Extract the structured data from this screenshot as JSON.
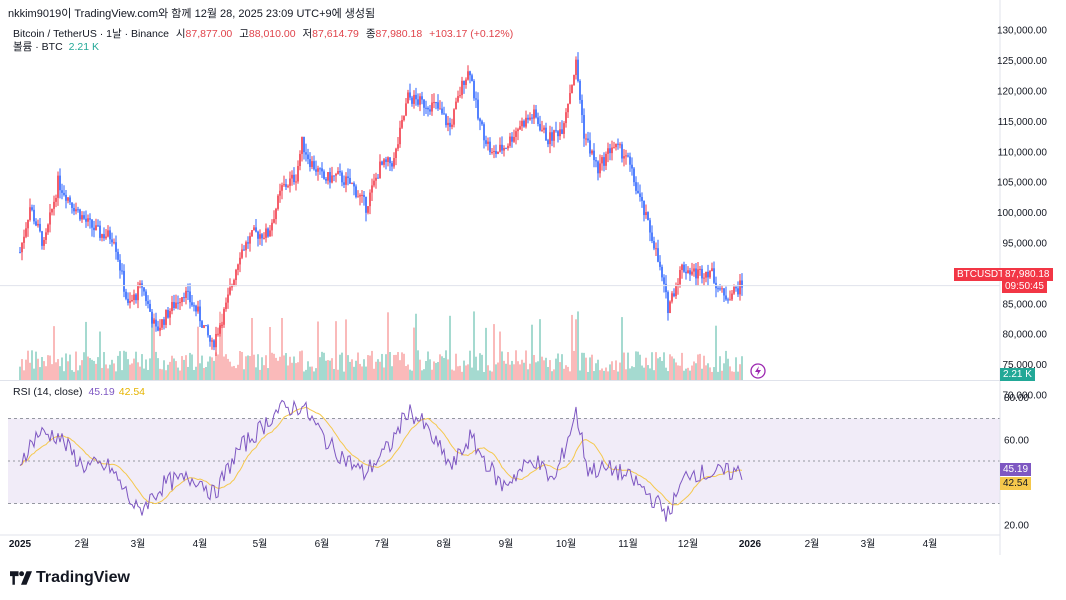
{
  "caption": "nkkim9019이 TradingView.com와 함께 12월 28, 2025 23:09 UTC+9에 생성됨",
  "header": {
    "symbol": "Bitcoin / TetherUS · 1날 · Binance",
    "open_label": "시",
    "open": "87,877.00",
    "high_label": "고",
    "high": "88,010.00",
    "low_label": "저",
    "low": "87,614.79",
    "close_label": "종",
    "close": "87,980.18",
    "change": "+103.17 (+0.12%)"
  },
  "volume": {
    "label": "볼륨 · BTC",
    "value": "2.21 K"
  },
  "rsi": {
    "label": "RSI (14, close)",
    "value": "45.19",
    "ma_value": "42.54"
  },
  "price_tag": {
    "symbol": "BTCUSDT",
    "price": "87,980.18",
    "countdown": "09:50:45"
  },
  "volume_tag": "2.21 K",
  "footer_logo": "TradingView",
  "colors": {
    "up": "#f23645",
    "down": "#2962ff",
    "vol_up": "#f8a9a9",
    "vol_down": "#8fd1c4",
    "rsi": "#7e57c2",
    "rsi_ma": "#f5c84c",
    "rsi_band": "#ede7f6"
  },
  "chart_data": {
    "type": "candlestick",
    "x_ticks": [
      "2025",
      "2월",
      "3월",
      "4월",
      "5월",
      "6월",
      "7월",
      "8월",
      "9월",
      "10월",
      "11월",
      "12월",
      "2026",
      "2월",
      "3월",
      "4월"
    ],
    "price_axis_ticks": [
      "130,000.00",
      "125,000.00",
      "120,000.00",
      "115,000.00",
      "110,000.00",
      "105,000.00",
      "100,000.00",
      "95,000.00",
      "90,000.00",
      "85,000.00",
      "80,000.00",
      "75,000.00",
      "70,000.00"
    ],
    "price_ylim": [
      70000,
      132000
    ],
    "rsi_axis_ticks": [
      "80.00",
      "60.00",
      "40.00",
      "20.00"
    ],
    "rsi_ylim": [
      18,
      82
    ],
    "rsi_bands": [
      70,
      50,
      30
    ],
    "price_path": [
      [
        "2025-01-01",
        93500
      ],
      [
        "2025-01-06",
        101000
      ],
      [
        "2025-01-13",
        94500
      ],
      [
        "2025-01-20",
        105000
      ],
      [
        "2025-01-27",
        101500
      ],
      [
        "2025-02-03",
        98500
      ],
      [
        "2025-02-10",
        96500
      ],
      [
        "2025-02-17",
        96000
      ],
      [
        "2025-02-24",
        84500
      ],
      [
        "2025-03-03",
        88000
      ],
      [
        "2025-03-10",
        80500
      ],
      [
        "2025-03-17",
        84000
      ],
      [
        "2025-03-24",
        87000
      ],
      [
        "2025-03-31",
        83500
      ],
      [
        "2025-04-07",
        78000
      ],
      [
        "2025-04-14",
        84500
      ],
      [
        "2025-04-21",
        93500
      ],
      [
        "2025-04-28",
        96500
      ],
      [
        "2025-05-05",
        96500
      ],
      [
        "2025-05-12",
        104000
      ],
      [
        "2025-05-19",
        106000
      ],
      [
        "2025-05-22",
        111500
      ],
      [
        "2025-05-26",
        108500
      ],
      [
        "2025-06-02",
        105500
      ],
      [
        "2025-06-09",
        106000
      ],
      [
        "2025-06-16",
        104500
      ],
      [
        "2025-06-23",
        101000
      ],
      [
        "2025-06-30",
        107500
      ],
      [
        "2025-07-07",
        108500
      ],
      [
        "2025-07-14",
        119000
      ],
      [
        "2025-07-21",
        118000
      ],
      [
        "2025-07-28",
        117500
      ],
      [
        "2025-08-04",
        114000
      ],
      [
        "2025-08-11",
        122000
      ],
      [
        "2025-08-14",
        123500
      ],
      [
        "2025-08-18",
        115500
      ],
      [
        "2025-08-25",
        109500
      ],
      [
        "2025-09-01",
        111000
      ],
      [
        "2025-09-08",
        114500
      ],
      [
        "2025-09-15",
        116000
      ],
      [
        "2025-09-22",
        112000
      ],
      [
        "2025-09-29",
        114000
      ],
      [
        "2025-10-06",
        124500
      ],
      [
        "2025-10-10",
        113000
      ],
      [
        "2025-10-17",
        107000
      ],
      [
        "2025-10-24",
        111000
      ],
      [
        "2025-10-31",
        109500
      ],
      [
        "2025-11-07",
        102000
      ],
      [
        "2025-11-14",
        95000
      ],
      [
        "2025-11-21",
        84500
      ],
      [
        "2025-11-28",
        91000
      ],
      [
        "2025-12-05",
        90000
      ],
      [
        "2025-12-12",
        90500
      ],
      [
        "2025-12-19",
        86000
      ],
      [
        "2025-12-28",
        87980
      ]
    ],
    "rsi_path": [
      [
        "2025-01-01",
        50
      ],
      [
        "2025-01-10",
        63
      ],
      [
        "2025-01-20",
        62
      ],
      [
        "2025-02-01",
        48
      ],
      [
        "2025-02-15",
        47
      ],
      [
        "2025-03-01",
        26
      ],
      [
        "2025-03-15",
        40
      ],
      [
        "2025-03-31",
        42
      ],
      [
        "2025-04-08",
        34
      ],
      [
        "2025-04-20",
        55
      ],
      [
        "2025-05-01",
        65
      ],
      [
        "2025-05-10",
        74
      ],
      [
        "2025-05-22",
        76
      ],
      [
        "2025-06-05",
        57
      ],
      [
        "2025-06-22",
        44
      ],
      [
        "2025-07-05",
        57
      ],
      [
        "2025-07-14",
        74
      ],
      [
        "2025-07-21",
        68
      ],
      [
        "2025-08-05",
        47
      ],
      [
        "2025-08-14",
        61
      ],
      [
        "2025-08-30",
        38
      ],
      [
        "2025-09-15",
        51
      ],
      [
        "2025-09-25",
        40
      ],
      [
        "2025-10-06",
        73
      ],
      [
        "2025-10-12",
        46
      ],
      [
        "2025-10-25",
        46
      ],
      [
        "2025-11-05",
        40
      ],
      [
        "2025-11-21",
        25
      ],
      [
        "2025-12-01",
        45
      ],
      [
        "2025-12-10",
        44
      ],
      [
        "2025-12-28",
        45
      ]
    ]
  }
}
